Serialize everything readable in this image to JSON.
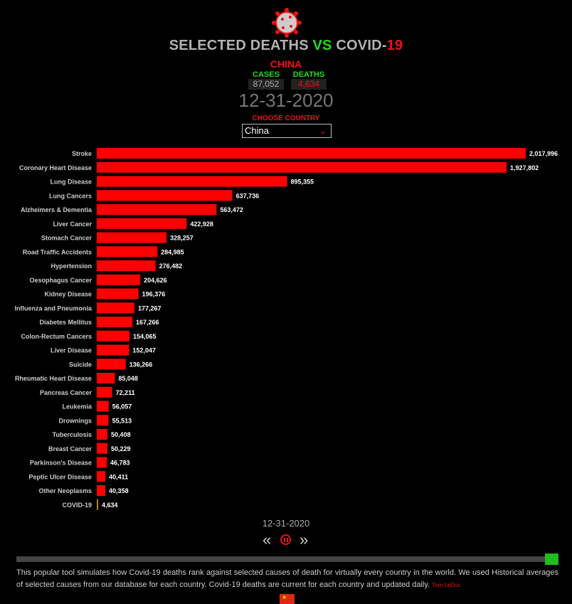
{
  "header": {
    "title_part1": "SELECTED DEATHS",
    "title_vs": "VS",
    "title_part2": "COVID-",
    "title_part3": "19",
    "country": "CHINA",
    "cases_label": "CASES",
    "cases_value": "87,052",
    "deaths_label": "DEATHS",
    "deaths_value": "4,634",
    "date": "12-31-2020",
    "choose_label": "CHOOSE COUNTRY",
    "selected_country": "China",
    "logo_icon": "virus-icon"
  },
  "controls": {
    "date": "12-31-2020",
    "prev_icon": "double-chevron-left-icon",
    "pause_icon": "pause-circle-icon",
    "next_icon": "double-chevron-right-icon",
    "progress": 1.0
  },
  "footer": {
    "description": "This popular tool simulates how Covid-19 deaths rank against selected causes of death for virtually every country in the world. We used Historical averages of selected causes from our database for each country. Covid-19 deaths are current for each country and updated daily.",
    "credit": "Tom LeDuc",
    "flag_icon": "china-flag-icon"
  },
  "colors": {
    "bar": "#ff0000",
    "covid_bar": "#b8860b",
    "accent_green": "#22dd22",
    "accent_red": "#ee1111"
  },
  "chart_data": {
    "type": "bar",
    "orientation": "horizontal",
    "categories": [
      "Stroke",
      "Coronary Heart Disease",
      "Lung Disease",
      "Lung Cancers",
      "Alzheimers & Dementia",
      "Liver Cancer",
      "Stomach Cancer",
      "Road Traffic Accidents",
      "Hypertension",
      "Oesophagus Cancer",
      "Kidney Disease",
      "Influenza and Pneumonia",
      "Diabetes Mellitus",
      "Colon-Rectum Cancers",
      "Liver Disease",
      "Suicide",
      "Rheumatic Heart Disease",
      "Pancreas Cancer",
      "Leukemia",
      "Drownings",
      "Tuberculosis",
      "Breast Cancer",
      "Parkinson's Disease",
      "Peptic Ulcer Disease",
      "Other Neoplasms",
      "COVID-19"
    ],
    "values": [
      2017996,
      1927802,
      895355,
      637736,
      563472,
      422928,
      328257,
      284985,
      276482,
      204626,
      196376,
      177267,
      167266,
      154065,
      152047,
      136266,
      85048,
      72211,
      56057,
      55513,
      50408,
      50229,
      46783,
      40411,
      40358,
      4634
    ],
    "value_labels": [
      "2,017,996",
      "1,927,802",
      "895,355",
      "637,736",
      "563,472",
      "422,928",
      "328,257",
      "284,985",
      "276,482",
      "204,626",
      "196,376",
      "177,267",
      "167,266",
      "154,065",
      "152,047",
      "136,266",
      "85,048",
      "72,211",
      "56,057",
      "55,513",
      "50,408",
      "50,229",
      "46,783",
      "40,411",
      "40,358",
      "4,634"
    ],
    "xlim": [
      0,
      2017996
    ],
    "grid": false,
    "legend": "none"
  }
}
